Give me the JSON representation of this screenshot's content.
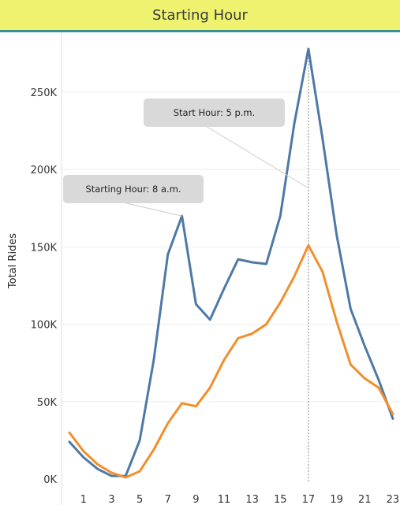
{
  "header": {
    "title": "Starting Hour"
  },
  "colors": {
    "header_bg": "#eef26e",
    "header_border": "#3b8e92",
    "series1": "#4e79a7",
    "series2": "#f28e2b",
    "gridline": "#eeeeee",
    "annotation_bg": "#d9d9d9",
    "reference_line": "#999999"
  },
  "chart_data": {
    "type": "line",
    "title": "Starting Hour",
    "xlabel": "",
    "ylabel": "Total Rides",
    "ylim": [
      0,
      280000
    ],
    "xlim": [
      0,
      23
    ],
    "x_ticks": [
      1,
      3,
      5,
      7,
      9,
      11,
      13,
      15,
      17,
      19,
      21,
      23
    ],
    "y_ticks": [
      {
        "value": 0,
        "label": "0K"
      },
      {
        "value": 50000,
        "label": "50K"
      },
      {
        "value": 100000,
        "label": "100K"
      },
      {
        "value": 150000,
        "label": "150K"
      },
      {
        "value": 200000,
        "label": "200K"
      },
      {
        "value": 250000,
        "label": "250K"
      }
    ],
    "grid": true,
    "x": [
      0,
      1,
      2,
      3,
      4,
      5,
      6,
      7,
      8,
      9,
      10,
      11,
      12,
      13,
      14,
      15,
      16,
      17,
      18,
      19,
      20,
      21,
      22,
      23
    ],
    "series": [
      {
        "color": "#4e79a7",
        "values": [
          24000,
          14000,
          6500,
          2000,
          2000,
          25000,
          77000,
          145000,
          170000,
          113000,
          103000,
          123000,
          142000,
          140000,
          139000,
          170000,
          230000,
          278000,
          220000,
          158000,
          110000,
          86000,
          64000,
          39000
        ]
      },
      {
        "color": "#f28e2b",
        "values": [
          30000,
          18000,
          9500,
          4000,
          1000,
          5000,
          19000,
          36000,
          49000,
          47000,
          59000,
          77000,
          91000,
          94000,
          100000,
          114000,
          131000,
          151000,
          134000,
          102000,
          74000,
          65000,
          59000,
          42000
        ]
      }
    ],
    "reference_line_x": 17,
    "annotations": [
      {
        "text": "Starting Hour: 8 a.m.",
        "x": 8,
        "y": 170000
      },
      {
        "text": "Start Hour: 5 p.m.",
        "x": 17,
        "y": 188000
      }
    ]
  }
}
